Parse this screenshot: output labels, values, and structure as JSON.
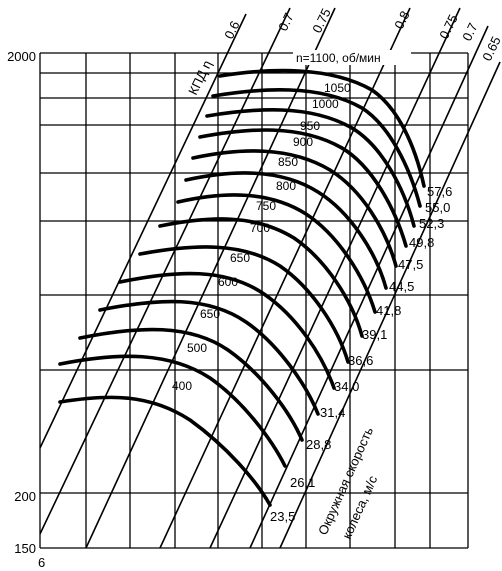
{
  "y_axis": {
    "top_label": "2000",
    "bottom_label": "200",
    "origin_label": "150"
  },
  "x_axis": {
    "origin_label": "6"
  },
  "efficiency": {
    "title": "КПД η",
    "lines": [
      "0.6",
      "0.7",
      "0.75",
      "0.8",
      "0.75",
      "0.7",
      "0.65"
    ]
  },
  "speed_header": "n=1100, об/мин",
  "speed_labels": [
    "1050",
    "1000",
    "950",
    "900",
    "850",
    "800",
    "750",
    "700",
    "650",
    "600",
    "650",
    "500",
    "400"
  ],
  "tip_speed": {
    "title_line1": "Окружная скорость",
    "title_line2": "колеса, м/с",
    "values": [
      "57,6",
      "55,0",
      "52,3",
      "49,8",
      "47,5",
      "44,5",
      "41,8",
      "39,1",
      "36,6",
      "34,0",
      "31,4",
      "28,8",
      "26,1",
      "23,5"
    ]
  }
}
